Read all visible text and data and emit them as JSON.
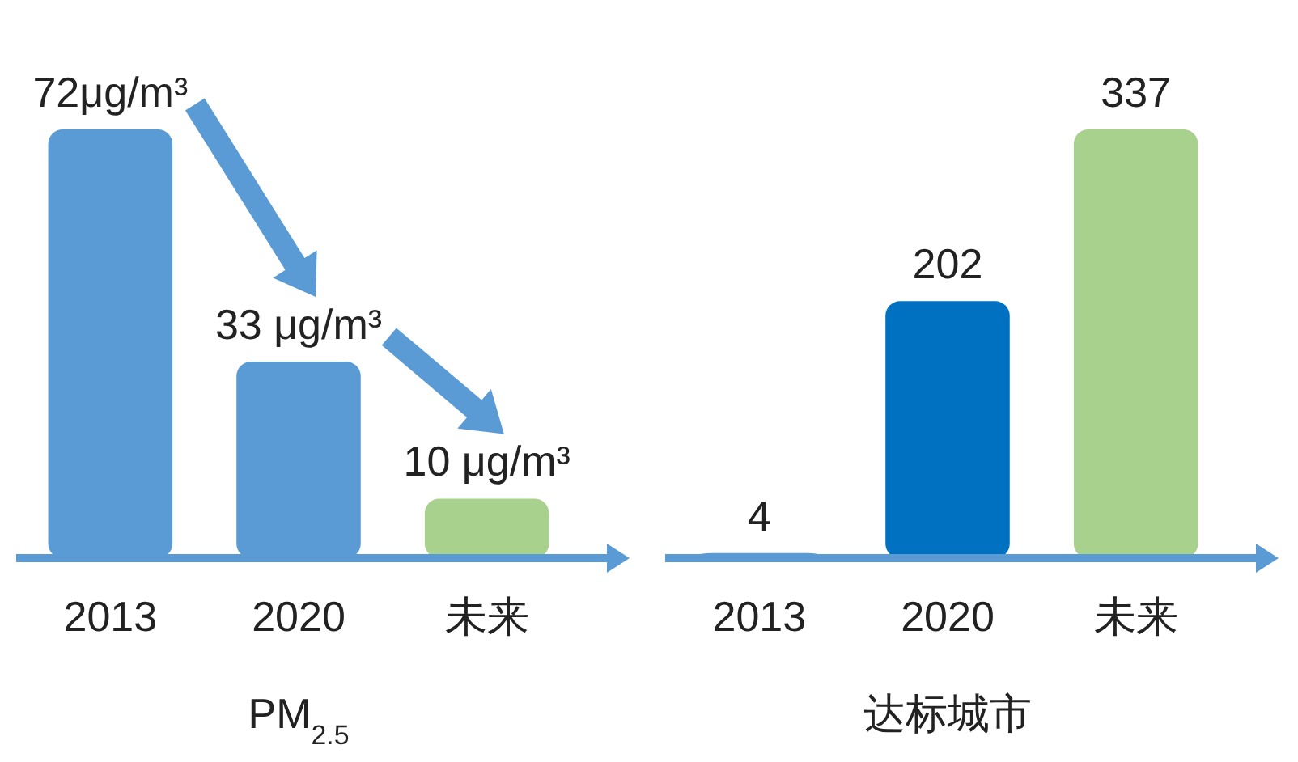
{
  "chart_data": [
    {
      "type": "bar",
      "categories": [
        "2013",
        "2020",
        "未来"
      ],
      "values": [
        72,
        33,
        10
      ],
      "colors": [
        "#5b9bd5",
        "#5b9bd5",
        "#a9d18e"
      ],
      "value_labels": [
        "72μg/m³",
        "33 μg/m³",
        "10  μg/m³"
      ],
      "xlabel": "PM$_{2.5}$",
      "tick_labels": "x"
    },
    {
      "type": "bar",
      "categories": [
        "2013",
        "2020",
        "未来"
      ],
      "values": [
        4,
        202,
        337
      ],
      "colors": [
        "#5b9bd5",
        "#0070c0",
        "#a9d18e"
      ],
      "data_labels": true,
      "xlabel": "达标城市",
      "tick_labels": "x"
    }
  ]
}
